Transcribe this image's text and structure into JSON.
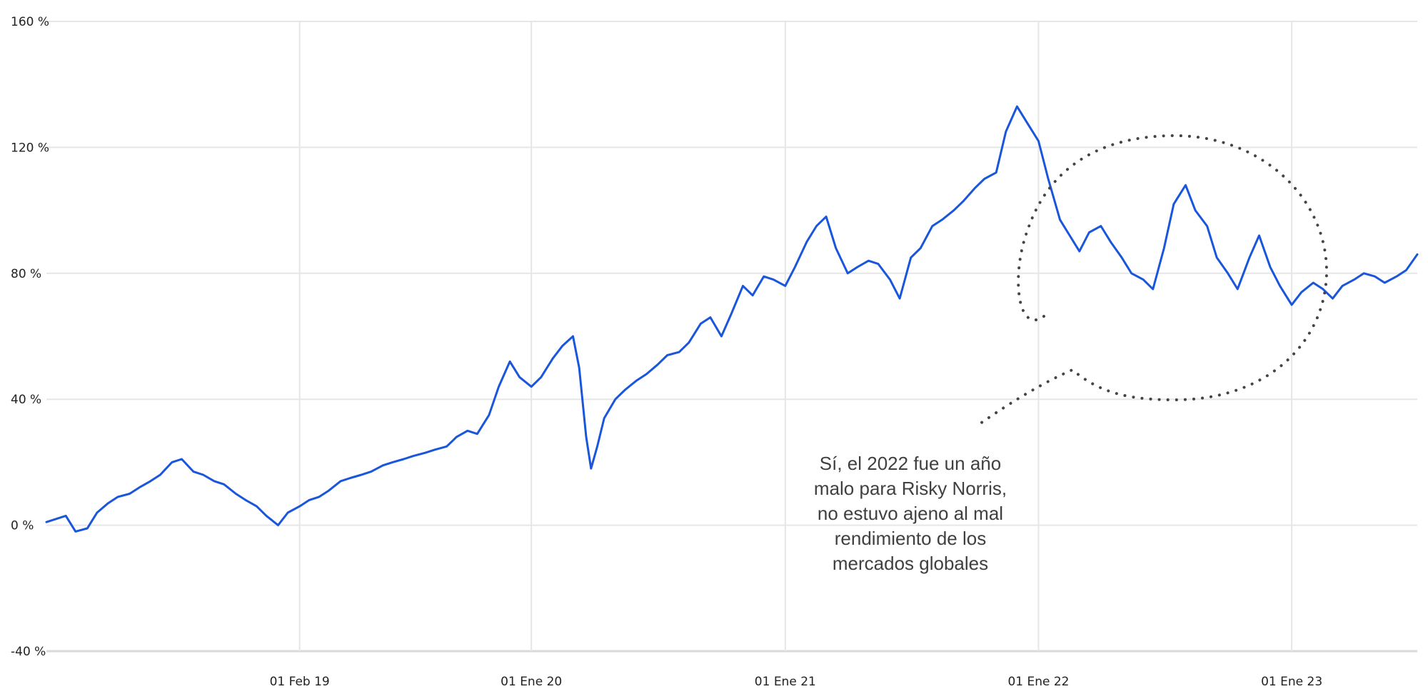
{
  "chart_data": {
    "type": "line",
    "title": "",
    "xlabel": "",
    "ylabel": "",
    "y_unit": "%",
    "ylim": [
      -40,
      160
    ],
    "xlim": [
      "2018-02-01",
      "2023-07-01"
    ],
    "grid": true,
    "legend": "none",
    "y_ticks": [
      {
        "value": -40,
        "label": "-40 %"
      },
      {
        "value": 0,
        "label": "0 %"
      },
      {
        "value": 40,
        "label": "40 %"
      },
      {
        "value": 80,
        "label": "80 %"
      },
      {
        "value": 120,
        "label": "120 %"
      },
      {
        "value": 160,
        "label": "160 %"
      }
    ],
    "x_ticks": [
      {
        "date": "2019-02-01",
        "label": "01 Feb 19"
      },
      {
        "date": "2020-01-01",
        "label": "01 Ene 20"
      },
      {
        "date": "2021-01-01",
        "label": "01 Ene 21"
      },
      {
        "date": "2022-01-01",
        "label": "01 Ene 22"
      },
      {
        "date": "2023-01-01",
        "label": "01 Ene 23"
      }
    ],
    "series": [
      {
        "color": "#1a56db",
        "points": [
          [
            "2018-02-01",
            1
          ],
          [
            "2018-02-15",
            2
          ],
          [
            "2018-03-01",
            3
          ],
          [
            "2018-03-15",
            -2
          ],
          [
            "2018-04-01",
            -1
          ],
          [
            "2018-04-15",
            4
          ],
          [
            "2018-05-01",
            7
          ],
          [
            "2018-05-15",
            9
          ],
          [
            "2018-06-01",
            10
          ],
          [
            "2018-06-15",
            12
          ],
          [
            "2018-07-01",
            14
          ],
          [
            "2018-07-15",
            16
          ],
          [
            "2018-08-01",
            20
          ],
          [
            "2018-08-15",
            21
          ],
          [
            "2018-09-01",
            17
          ],
          [
            "2018-09-15",
            16
          ],
          [
            "2018-10-01",
            14
          ],
          [
            "2018-10-15",
            13
          ],
          [
            "2018-11-01",
            10
          ],
          [
            "2018-11-15",
            8
          ],
          [
            "2018-12-01",
            6
          ],
          [
            "2018-12-15",
            3
          ],
          [
            "2019-01-01",
            0
          ],
          [
            "2019-01-15",
            4
          ],
          [
            "2019-02-01",
            6
          ],
          [
            "2019-02-15",
            8
          ],
          [
            "2019-03-01",
            9
          ],
          [
            "2019-03-15",
            11
          ],
          [
            "2019-04-01",
            14
          ],
          [
            "2019-04-15",
            15
          ],
          [
            "2019-05-01",
            16
          ],
          [
            "2019-05-15",
            17
          ],
          [
            "2019-06-01",
            19
          ],
          [
            "2019-06-15",
            20
          ],
          [
            "2019-07-01",
            21
          ],
          [
            "2019-07-15",
            22
          ],
          [
            "2019-08-01",
            23
          ],
          [
            "2019-08-15",
            24
          ],
          [
            "2019-09-01",
            25
          ],
          [
            "2019-09-15",
            28
          ],
          [
            "2019-10-01",
            30
          ],
          [
            "2019-10-15",
            29
          ],
          [
            "2019-11-01",
            35
          ],
          [
            "2019-11-15",
            44
          ],
          [
            "2019-12-01",
            52
          ],
          [
            "2019-12-15",
            47
          ],
          [
            "2020-01-01",
            44
          ],
          [
            "2020-01-15",
            47
          ],
          [
            "2020-02-01",
            53
          ],
          [
            "2020-02-15",
            57
          ],
          [
            "2020-03-01",
            60
          ],
          [
            "2020-03-10",
            50
          ],
          [
            "2020-03-20",
            28
          ],
          [
            "2020-03-27",
            18
          ],
          [
            "2020-04-05",
            25
          ],
          [
            "2020-04-15",
            34
          ],
          [
            "2020-05-01",
            40
          ],
          [
            "2020-05-15",
            43
          ],
          [
            "2020-06-01",
            46
          ],
          [
            "2020-06-15",
            48
          ],
          [
            "2020-07-01",
            51
          ],
          [
            "2020-07-15",
            54
          ],
          [
            "2020-08-01",
            55
          ],
          [
            "2020-08-15",
            58
          ],
          [
            "2020-09-01",
            64
          ],
          [
            "2020-09-15",
            66
          ],
          [
            "2020-10-01",
            60
          ],
          [
            "2020-10-15",
            67
          ],
          [
            "2020-11-01",
            76
          ],
          [
            "2020-11-15",
            73
          ],
          [
            "2020-12-01",
            79
          ],
          [
            "2020-12-15",
            78
          ],
          [
            "2021-01-01",
            76
          ],
          [
            "2021-01-15",
            82
          ],
          [
            "2021-02-01",
            90
          ],
          [
            "2021-02-15",
            95
          ],
          [
            "2021-03-01",
            98
          ],
          [
            "2021-03-15",
            88
          ],
          [
            "2021-04-01",
            80
          ],
          [
            "2021-04-15",
            82
          ],
          [
            "2021-05-01",
            84
          ],
          [
            "2021-05-15",
            83
          ],
          [
            "2021-06-01",
            78
          ],
          [
            "2021-06-15",
            72
          ],
          [
            "2021-07-01",
            85
          ],
          [
            "2021-07-15",
            88
          ],
          [
            "2021-08-01",
            95
          ],
          [
            "2021-08-15",
            97
          ],
          [
            "2021-09-01",
            100
          ],
          [
            "2021-09-15",
            103
          ],
          [
            "2021-10-01",
            107
          ],
          [
            "2021-10-15",
            110
          ],
          [
            "2021-11-01",
            112
          ],
          [
            "2021-11-15",
            125
          ],
          [
            "2021-12-01",
            133
          ],
          [
            "2021-12-15",
            128
          ],
          [
            "2022-01-01",
            122
          ],
          [
            "2022-01-15",
            110
          ],
          [
            "2022-02-01",
            97
          ],
          [
            "2022-02-15",
            92
          ],
          [
            "2022-03-01",
            87
          ],
          [
            "2022-03-15",
            93
          ],
          [
            "2022-04-01",
            95
          ],
          [
            "2022-04-15",
            90
          ],
          [
            "2022-05-01",
            85
          ],
          [
            "2022-05-15",
            80
          ],
          [
            "2022-06-01",
            78
          ],
          [
            "2022-06-15",
            75
          ],
          [
            "2022-07-01",
            88
          ],
          [
            "2022-07-15",
            102
          ],
          [
            "2022-08-01",
            108
          ],
          [
            "2022-08-15",
            100
          ],
          [
            "2022-09-01",
            95
          ],
          [
            "2022-09-15",
            85
          ],
          [
            "2022-10-01",
            80
          ],
          [
            "2022-10-15",
            75
          ],
          [
            "2022-11-01",
            85
          ],
          [
            "2022-11-15",
            92
          ],
          [
            "2022-12-01",
            82
          ],
          [
            "2022-12-15",
            76
          ],
          [
            "2023-01-01",
            70
          ],
          [
            "2023-01-15",
            74
          ],
          [
            "2023-02-01",
            77
          ],
          [
            "2023-02-15",
            75
          ],
          [
            "2023-03-01",
            72
          ],
          [
            "2023-03-15",
            76
          ],
          [
            "2023-04-01",
            78
          ],
          [
            "2023-04-15",
            80
          ],
          [
            "2023-05-01",
            79
          ],
          [
            "2023-05-15",
            77
          ],
          [
            "2023-06-01",
            79
          ],
          [
            "2023-06-15",
            81
          ],
          [
            "2023-07-01",
            86
          ]
        ]
      }
    ],
    "annotation": {
      "text": "Sí, el 2022 fue un año malo para Risky Norris, no estuvo ajeno al mal rendimiento de los mercados globales"
    }
  }
}
